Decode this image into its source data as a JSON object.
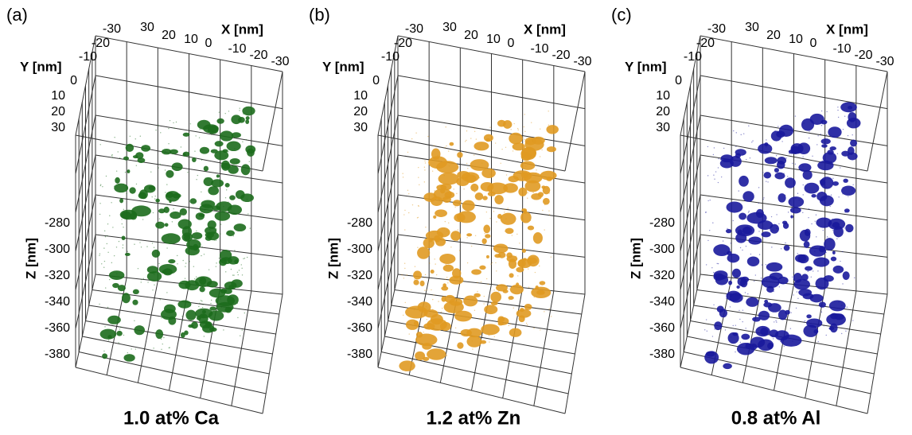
{
  "panels": [
    {
      "label": "(a)",
      "caption": "1.0 at% Ca",
      "color": "#1c6b1c",
      "x_axis": {
        "title": "X [nm]",
        "ticks": [
          "30",
          "20",
          "10",
          "0",
          "-10",
          "-20",
          "-30"
        ]
      },
      "y_axis": {
        "title": "Y [nm]",
        "ticks": [
          "-30",
          "-20",
          "-10",
          "0",
          "10",
          "20",
          "30"
        ]
      },
      "z_axis": {
        "title": "Z [nm]",
        "ticks": [
          "-280",
          "-300",
          "-320",
          "-340",
          "-360",
          "-380"
        ]
      }
    },
    {
      "label": "(b)",
      "caption": "1.2 at% Zn",
      "color": "#e09a22",
      "x_axis": {
        "title": "X [nm]",
        "ticks": [
          "30",
          "20",
          "10",
          "0",
          "-10",
          "-20",
          "-30"
        ]
      },
      "y_axis": {
        "title": "Y [nm]",
        "ticks": [
          "-30",
          "-20",
          "-10",
          "0",
          "10",
          "20",
          "30"
        ]
      },
      "z_axis": {
        "title": "Z [nm]",
        "ticks": [
          "-280",
          "-300",
          "-320",
          "-340",
          "-360",
          "-380"
        ]
      }
    },
    {
      "label": "(c)",
      "caption": "0.8 at% Al",
      "color": "#1a1a9c",
      "x_axis": {
        "title": "X [nm]",
        "ticks": [
          "30",
          "20",
          "10",
          "0",
          "-10",
          "-20",
          "-30"
        ]
      },
      "y_axis": {
        "title": "Y [nm]",
        "ticks": [
          "-30",
          "-20",
          "-10",
          "0",
          "10",
          "20",
          "30"
        ]
      },
      "z_axis": {
        "title": "Z [nm]",
        "ticks": [
          "-280",
          "-300",
          "-320",
          "-340",
          "-360",
          "-380"
        ]
      }
    }
  ]
}
